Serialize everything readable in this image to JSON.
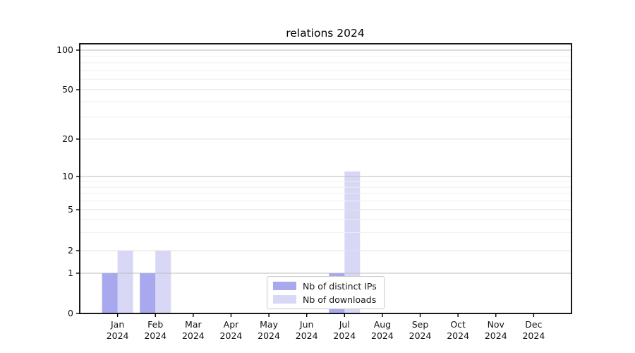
{
  "chart_data": {
    "type": "bar",
    "title": "relations 2024",
    "categories": [
      "Jan",
      "Feb",
      "Mar",
      "Apr",
      "May",
      "Jun",
      "Jul",
      "Aug",
      "Sep",
      "Oct",
      "Nov",
      "Dec"
    ],
    "category_sublabel": "2024",
    "series": [
      {
        "name": "Nb of distinct IPs",
        "color": "#a8a8ee",
        "values": [
          1,
          1,
          0,
          0,
          0,
          0,
          1,
          0,
          0,
          0,
          0,
          0
        ]
      },
      {
        "name": "Nb of downloads",
        "color": "#d8d8f6",
        "values": [
          2,
          2,
          0,
          0,
          0,
          0,
          11,
          0,
          0,
          0,
          0,
          0
        ]
      }
    ],
    "yticks": [
      0,
      1,
      2,
      5,
      10,
      20,
      50,
      100
    ],
    "minor_yticks": [
      3,
      4,
      6,
      7,
      8,
      9,
      30,
      40,
      60,
      70,
      80,
      90
    ],
    "ylim": [
      0,
      112
    ],
    "xlabel": "",
    "ylabel": "",
    "scale": "log-like, linear below 1",
    "grid": true,
    "legend_position": "lower center inside plot",
    "colors": {
      "axis": "#000000",
      "decade_gridline": "#bdbdbd",
      "major_gridline": "#e2e2e2",
      "minor_gridline": "#efefef",
      "tick_label": "#111111"
    }
  }
}
